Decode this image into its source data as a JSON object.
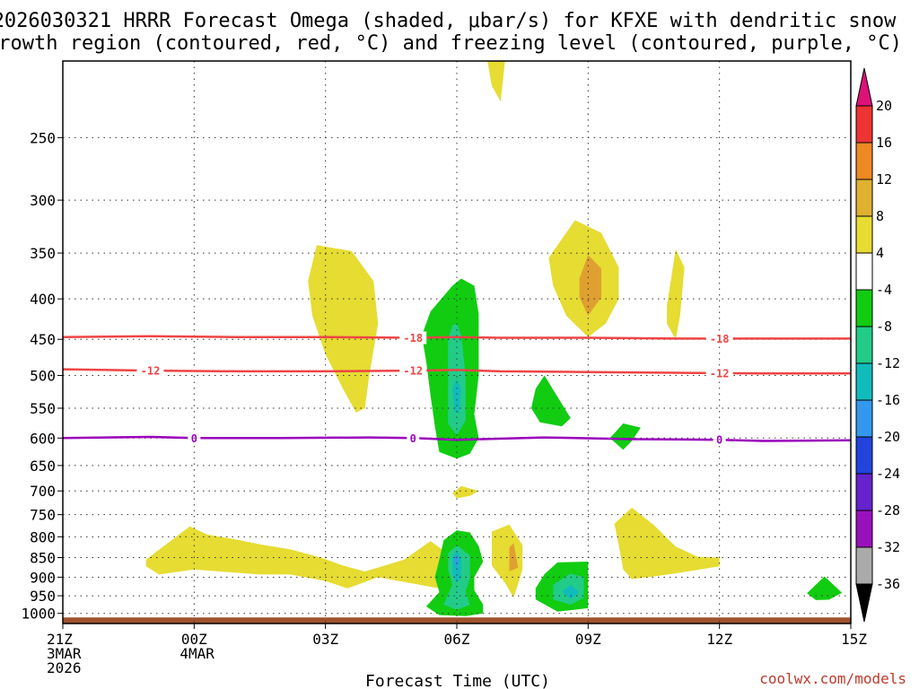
{
  "chart_data": {
    "type": "contour",
    "title_lines": [
      "2026030321 HRRR Forecast Omega (shaded, μbar/s) for KFXE with dendritic snow",
      "growth region (contoured, red, °C) and freezing level (contoured, purple, °C)"
    ],
    "xlabel": "Forecast Time (UTC)",
    "ylabel": "",
    "credit": "coolwx.com/models",
    "x_range_hours": [
      0,
      18
    ],
    "x_ticks": [
      {
        "hour": 0,
        "lines": [
          "21Z",
          "3MAR",
          "2026"
        ]
      },
      {
        "hour": 3,
        "lines": [
          "00Z",
          "4MAR"
        ]
      },
      {
        "hour": 6,
        "lines": [
          "03Z"
        ]
      },
      {
        "hour": 9,
        "lines": [
          "06Z"
        ]
      },
      {
        "hour": 12,
        "lines": [
          "09Z"
        ]
      },
      {
        "hour": 15,
        "lines": [
          "12Z"
        ]
      },
      {
        "hour": 18,
        "lines": [
          "15Z"
        ]
      }
    ],
    "y_ticks_hpa": [
      250,
      300,
      350,
      400,
      450,
      500,
      550,
      600,
      650,
      700,
      750,
      800,
      850,
      900,
      950,
      1000
    ],
    "y_range_hpa": [
      200,
      1030
    ],
    "isotherms": [
      {
        "label": "-18",
        "color": "#ee4444",
        "points": [
          [
            0,
            447
          ],
          [
            2,
            446
          ],
          [
            4,
            447
          ],
          [
            6,
            447
          ],
          [
            8,
            448
          ],
          [
            9,
            447
          ],
          [
            10,
            448
          ],
          [
            12,
            448
          ],
          [
            14,
            449
          ],
          [
            16,
            449
          ],
          [
            18,
            449
          ]
        ],
        "label_hours": [
          8,
          15
        ]
      },
      {
        "label": "-12",
        "color": "#ee4444",
        "points": [
          [
            0,
            491
          ],
          [
            2,
            493
          ],
          [
            4,
            494
          ],
          [
            6,
            494
          ],
          [
            8,
            493
          ],
          [
            9,
            492
          ],
          [
            10,
            494
          ],
          [
            12,
            495
          ],
          [
            14,
            496
          ],
          [
            16,
            497
          ],
          [
            18,
            497
          ]
        ],
        "label_hours": [
          2,
          8,
          15
        ]
      },
      {
        "label": "0",
        "color": "#9a00bb",
        "points": [
          [
            0,
            600
          ],
          [
            2,
            598
          ],
          [
            3,
            600
          ],
          [
            5,
            600
          ],
          [
            7,
            599
          ],
          [
            8,
            600
          ],
          [
            9,
            603
          ],
          [
            11,
            599
          ],
          [
            13,
            602
          ],
          [
            15,
            603
          ],
          [
            16,
            605
          ],
          [
            18,
            604
          ]
        ],
        "label_hours": [
          3,
          8,
          15
        ]
      }
    ],
    "omega_regions": [
      {
        "level": "4",
        "color": "#e6dc32",
        "points": [
          [
            9.7,
            200
          ],
          [
            10.1,
            200
          ],
          [
            10.0,
            225
          ],
          [
            9.8,
            215
          ]
        ]
      },
      {
        "level": "4",
        "color": "#e6dc32",
        "points": [
          [
            5.8,
            342
          ],
          [
            6.6,
            348
          ],
          [
            7.1,
            380
          ],
          [
            7.2,
            430
          ],
          [
            7.0,
            500
          ],
          [
            6.9,
            550
          ],
          [
            6.7,
            557
          ],
          [
            6.4,
            520
          ],
          [
            6.0,
            470
          ],
          [
            5.7,
            420
          ],
          [
            5.6,
            380
          ]
        ]
      },
      {
        "level": "4",
        "color": "#e6dc32",
        "points": [
          [
            11.1,
            355
          ],
          [
            11.7,
            318
          ],
          [
            12.3,
            330
          ],
          [
            12.7,
            365
          ],
          [
            12.7,
            400
          ],
          [
            12.4,
            430
          ],
          [
            12.0,
            447
          ],
          [
            11.5,
            420
          ],
          [
            11.2,
            385
          ]
        ]
      },
      {
        "level": "8",
        "color": "#e0a030",
        "points": [
          [
            11.8,
            377
          ],
          [
            12.0,
            352
          ],
          [
            12.3,
            366
          ],
          [
            12.3,
            398
          ],
          [
            12.0,
            420
          ],
          [
            11.8,
            398
          ]
        ]
      },
      {
        "level": "4",
        "color": "#e6dc32",
        "points": [
          [
            13.8,
            408
          ],
          [
            14.0,
            346
          ],
          [
            14.2,
            365
          ],
          [
            14.1,
            420
          ],
          [
            14.0,
            450
          ],
          [
            13.8,
            430
          ]
        ]
      },
      {
        "level": "4",
        "color": "#e6dc32",
        "points": [
          [
            1.9,
            855
          ],
          [
            2.9,
            776
          ],
          [
            3.3,
            795
          ],
          [
            4.0,
            807
          ],
          [
            4.5,
            818
          ],
          [
            5.2,
            830
          ],
          [
            5.9,
            850
          ],
          [
            6.4,
            870
          ],
          [
            6.9,
            885
          ],
          [
            7.8,
            855
          ],
          [
            8.4,
            810
          ],
          [
            8.7,
            833
          ],
          [
            8.7,
            932
          ],
          [
            7.2,
            900
          ],
          [
            6.5,
            930
          ],
          [
            6.0,
            910
          ],
          [
            5.2,
            893
          ],
          [
            4.5,
            893
          ],
          [
            3.0,
            880
          ],
          [
            2.2,
            893
          ],
          [
            1.9,
            872
          ]
        ]
      },
      {
        "level": "4",
        "color": "#e6dc32",
        "points": [
          [
            8.9,
            705
          ],
          [
            9.1,
            690
          ],
          [
            9.5,
            700
          ],
          [
            9.3,
            710
          ],
          [
            9.0,
            715
          ]
        ]
      },
      {
        "level": "4",
        "color": "#e6dc32",
        "points": [
          [
            9.8,
            788
          ],
          [
            10.2,
            772
          ],
          [
            10.5,
            820
          ],
          [
            10.5,
            880
          ],
          [
            10.3,
            955
          ],
          [
            10.1,
            915
          ],
          [
            9.8,
            870
          ]
        ]
      },
      {
        "level": "8",
        "color": "#e0a030",
        "points": [
          [
            10.2,
            825
          ],
          [
            10.3,
            815
          ],
          [
            10.4,
            875
          ],
          [
            10.2,
            885
          ]
        ]
      },
      {
        "level": "4",
        "color": "#e6dc32",
        "points": [
          [
            12.6,
            770
          ],
          [
            13.0,
            735
          ],
          [
            13.5,
            773
          ],
          [
            14.0,
            823
          ],
          [
            14.5,
            848
          ],
          [
            15.0,
            850
          ],
          [
            15.0,
            872
          ],
          [
            14.0,
            890
          ],
          [
            13.5,
            898
          ],
          [
            13.0,
            905
          ],
          [
            12.8,
            880
          ],
          [
            12.7,
            820
          ]
        ]
      },
      {
        "level": "-4",
        "color": "#11cc11",
        "points": [
          [
            8.2,
            445
          ],
          [
            8.4,
            415
          ],
          [
            8.9,
            385
          ],
          [
            9.1,
            377
          ],
          [
            9.4,
            385
          ],
          [
            9.5,
            418
          ],
          [
            9.5,
            500
          ],
          [
            9.4,
            560
          ],
          [
            9.5,
            600
          ],
          [
            9.3,
            628
          ],
          [
            9.0,
            637
          ],
          [
            8.6,
            625
          ],
          [
            8.5,
            580
          ],
          [
            8.4,
            530
          ],
          [
            8.3,
            480
          ]
        ]
      },
      {
        "level": "-8",
        "color": "#22cc88",
        "points": [
          [
            8.8,
            450
          ],
          [
            8.9,
            432
          ],
          [
            9.0,
            430
          ],
          [
            9.1,
            445
          ],
          [
            9.2,
            500
          ],
          [
            9.2,
            570
          ],
          [
            9.0,
            595
          ],
          [
            8.8,
            575
          ],
          [
            8.8,
            500
          ]
        ]
      },
      {
        "level": "-12",
        "color": "#11bbbb",
        "points": [
          [
            8.9,
            520
          ],
          [
            9.0,
            505
          ],
          [
            9.1,
            520
          ],
          [
            9.05,
            560
          ],
          [
            8.95,
            555
          ]
        ]
      },
      {
        "level": "-4",
        "color": "#11cc11",
        "points": [
          [
            10.8,
            520
          ],
          [
            11.0,
            500
          ],
          [
            11.3,
            532
          ],
          [
            11.6,
            566
          ],
          [
            11.4,
            580
          ],
          [
            10.9,
            573
          ],
          [
            10.7,
            550
          ]
        ]
      },
      {
        "level": "-4",
        "color": "#11cc11",
        "points": [
          [
            12.5,
            600
          ],
          [
            12.8,
            575
          ],
          [
            13.2,
            582
          ],
          [
            13.0,
            605
          ],
          [
            12.8,
            621
          ]
        ]
      },
      {
        "level": "-4",
        "color": "#11cc11",
        "points": [
          [
            8.6,
            855
          ],
          [
            8.7,
            808
          ],
          [
            9.0,
            785
          ],
          [
            9.3,
            790
          ],
          [
            9.5,
            822
          ],
          [
            9.6,
            860
          ],
          [
            9.4,
            900
          ],
          [
            9.4,
            935
          ],
          [
            9.6,
            975
          ],
          [
            9.6,
            1000
          ],
          [
            9.2,
            1008
          ],
          [
            8.6,
            1005
          ],
          [
            8.3,
            980
          ],
          [
            8.6,
            940
          ],
          [
            8.5,
            900
          ]
        ]
      },
      {
        "level": "-8",
        "color": "#22cc88",
        "points": [
          [
            8.8,
            840
          ],
          [
            9.0,
            820
          ],
          [
            9.3,
            845
          ],
          [
            9.3,
            900
          ],
          [
            9.2,
            940
          ],
          [
            9.3,
            975
          ],
          [
            9.0,
            990
          ],
          [
            8.7,
            975
          ],
          [
            8.9,
            920
          ],
          [
            8.8,
            880
          ]
        ]
      },
      {
        "level": "-12",
        "color": "#11bbbb",
        "points": [
          [
            8.9,
            850
          ],
          [
            9.0,
            830
          ],
          [
            9.1,
            855
          ],
          [
            9.1,
            900
          ],
          [
            9.0,
            915
          ],
          [
            8.9,
            890
          ]
        ]
      },
      {
        "level": "-16",
        "color": "#3399ee",
        "points": [
          [
            8.95,
            855
          ],
          [
            9.0,
            840
          ],
          [
            9.05,
            855
          ],
          [
            9.0,
            878
          ]
        ]
      },
      {
        "level": "-4",
        "color": "#11cc11",
        "points": [
          [
            11.0,
            892
          ],
          [
            11.3,
            862
          ],
          [
            12.0,
            860
          ],
          [
            12.0,
            985
          ],
          [
            11.3,
            995
          ],
          [
            10.8,
            960
          ],
          [
            10.8,
            930
          ]
        ]
      },
      {
        "level": "-8",
        "color": "#22cc88",
        "points": [
          [
            11.2,
            920
          ],
          [
            11.6,
            890
          ],
          [
            11.9,
            900
          ],
          [
            11.9,
            955
          ],
          [
            11.6,
            975
          ],
          [
            11.2,
            960
          ]
        ]
      },
      {
        "level": "-12",
        "color": "#11bbbb",
        "points": [
          [
            11.4,
            938
          ],
          [
            11.6,
            920
          ],
          [
            11.8,
            940
          ],
          [
            11.6,
            960
          ]
        ]
      },
      {
        "level": "-4",
        "color": "#11cc11",
        "points": [
          [
            17.0,
            943
          ],
          [
            17.4,
            898
          ],
          [
            17.8,
            942
          ],
          [
            17.5,
            961
          ],
          [
            17.2,
            962
          ]
        ]
      }
    ],
    "ground_band_hpa": [
      1012,
      1030
    ],
    "ground_color": "#a0522d",
    "colorbar": {
      "segments": [
        {
          "from": "20",
          "to": "top",
          "color": "#dd1177"
        },
        {
          "from": "16",
          "to": "20",
          "color": "#ee3333"
        },
        {
          "from": "12",
          "to": "16",
          "color": "#ee8822"
        },
        {
          "from": "8",
          "to": "12",
          "color": "#e0b030"
        },
        {
          "from": "4",
          "to": "8",
          "color": "#e6dc32"
        },
        {
          "from": "-4",
          "to": "4",
          "color": "#ffffff"
        },
        {
          "from": "-8",
          "to": "-4",
          "color": "#11cc11"
        },
        {
          "from": "-12",
          "to": "-8",
          "color": "#22cc88"
        },
        {
          "from": "-16",
          "to": "-12",
          "color": "#11bbbb"
        },
        {
          "from": "-20",
          "to": "-16",
          "color": "#3399ee"
        },
        {
          "from": "-24",
          "to": "-20",
          "color": "#2244dd"
        },
        {
          "from": "-28",
          "to": "-24",
          "color": "#6622cc"
        },
        {
          "from": "-32",
          "to": "-28",
          "color": "#9911bb"
        },
        {
          "from": "-36",
          "to": "-32",
          "color": "#aaaaaa"
        },
        {
          "from": "bottom",
          "to": "-36",
          "color": "#000000"
        }
      ],
      "labels": [
        "20",
        "16",
        "12",
        "8",
        "4",
        "-4",
        "-8",
        "-12",
        "-16",
        "-20",
        "-24",
        "-28",
        "-32",
        "-36"
      ]
    }
  }
}
